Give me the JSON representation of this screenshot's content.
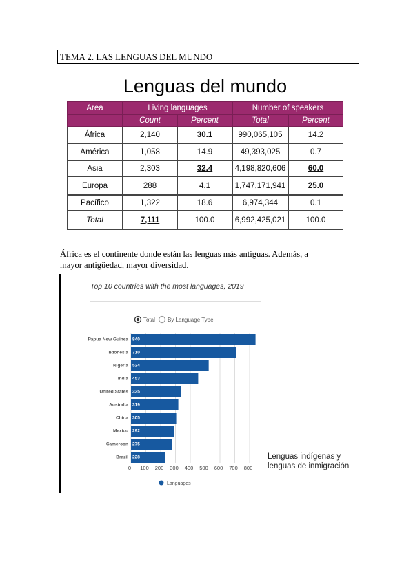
{
  "header": {
    "title": "TEMA 2. LAS LENGUAS DEL MUNDO"
  },
  "table": {
    "title": "Lenguas del mundo",
    "header": [
      "Area",
      "Living languages",
      "Number of speakers"
    ],
    "subheader": [
      "Count",
      "Percent",
      "Total",
      "Percent"
    ],
    "rows": [
      [
        "África",
        "2,140",
        "30.1",
        "990,065,105",
        "14.2"
      ],
      [
        "América",
        "1,058",
        "14.9",
        "49,393,025",
        "0.7"
      ],
      [
        "Asia",
        "2,303",
        "32.4",
        "4,198,820,606",
        "60.0"
      ],
      [
        "Europa",
        "288",
        "4.1",
        "1,747,171,941",
        "25.0"
      ],
      [
        "Pacífico",
        "1,322",
        "18.6",
        "6,974,344",
        "0.1"
      ],
      [
        "Total",
        "7,111",
        "100.0",
        "6,992,425,021",
        "100.0"
      ]
    ]
  },
  "paragraph": "África es el continente donde están las lenguas más antiguas. Además, a mayor antigüedad, mayor diversidad.",
  "chart_data": {
    "type": "hbar",
    "title": "Top 10 countries with the most languages, 2019",
    "controls": [
      "Total",
      "By Language Type"
    ],
    "categories": [
      "Papua New Guinea",
      "Indonesia",
      "Nigeria",
      "India",
      "United States",
      "Australia",
      "China",
      "Mexico",
      "Cameroon",
      "Brazil"
    ],
    "series": [
      {
        "name": "Languages",
        "color": "#1759a0",
        "values": [
          840,
          710,
          524,
          453,
          335,
          319,
          305,
          292,
          275,
          228
        ]
      }
    ],
    "xlim": [
      0,
      800
    ],
    "xticks": [
      0,
      100,
      200,
      300,
      400,
      500,
      600,
      700,
      800
    ],
    "grid": true
  },
  "annotation": "Lenguas indígenas y lenguas de inmigración"
}
